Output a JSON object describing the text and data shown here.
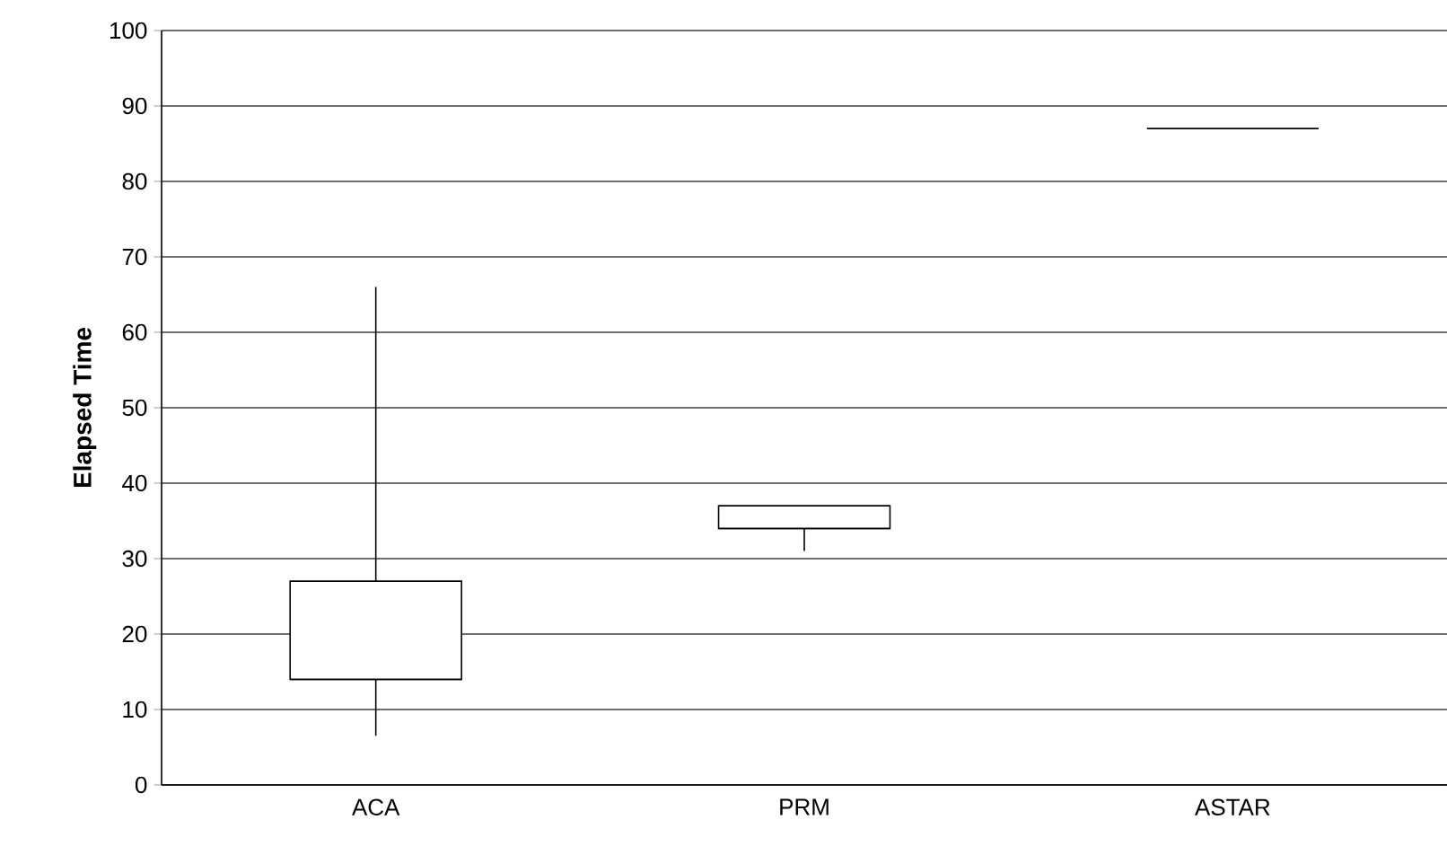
{
  "chart_data": {
    "type": "box",
    "categories": [
      "ACA",
      "PRM",
      "ASTAR"
    ],
    "ylabel": "Elapsed Time",
    "ylim": [
      0,
      100
    ],
    "yticks": [
      0,
      10,
      20,
      30,
      40,
      50,
      60,
      70,
      80,
      90,
      100
    ],
    "grid": "y",
    "color": "#000000",
    "boxes": [
      {
        "low": 6.5,
        "q1": 14,
        "median": 14,
        "q3": 27,
        "high": 66
      },
      {
        "low": 31,
        "q1": 34,
        "median": 34,
        "q3": 37,
        "high": 37
      },
      {
        "low": 87,
        "q1": 87,
        "median": 87,
        "q3": 87,
        "high": 87
      }
    ]
  }
}
